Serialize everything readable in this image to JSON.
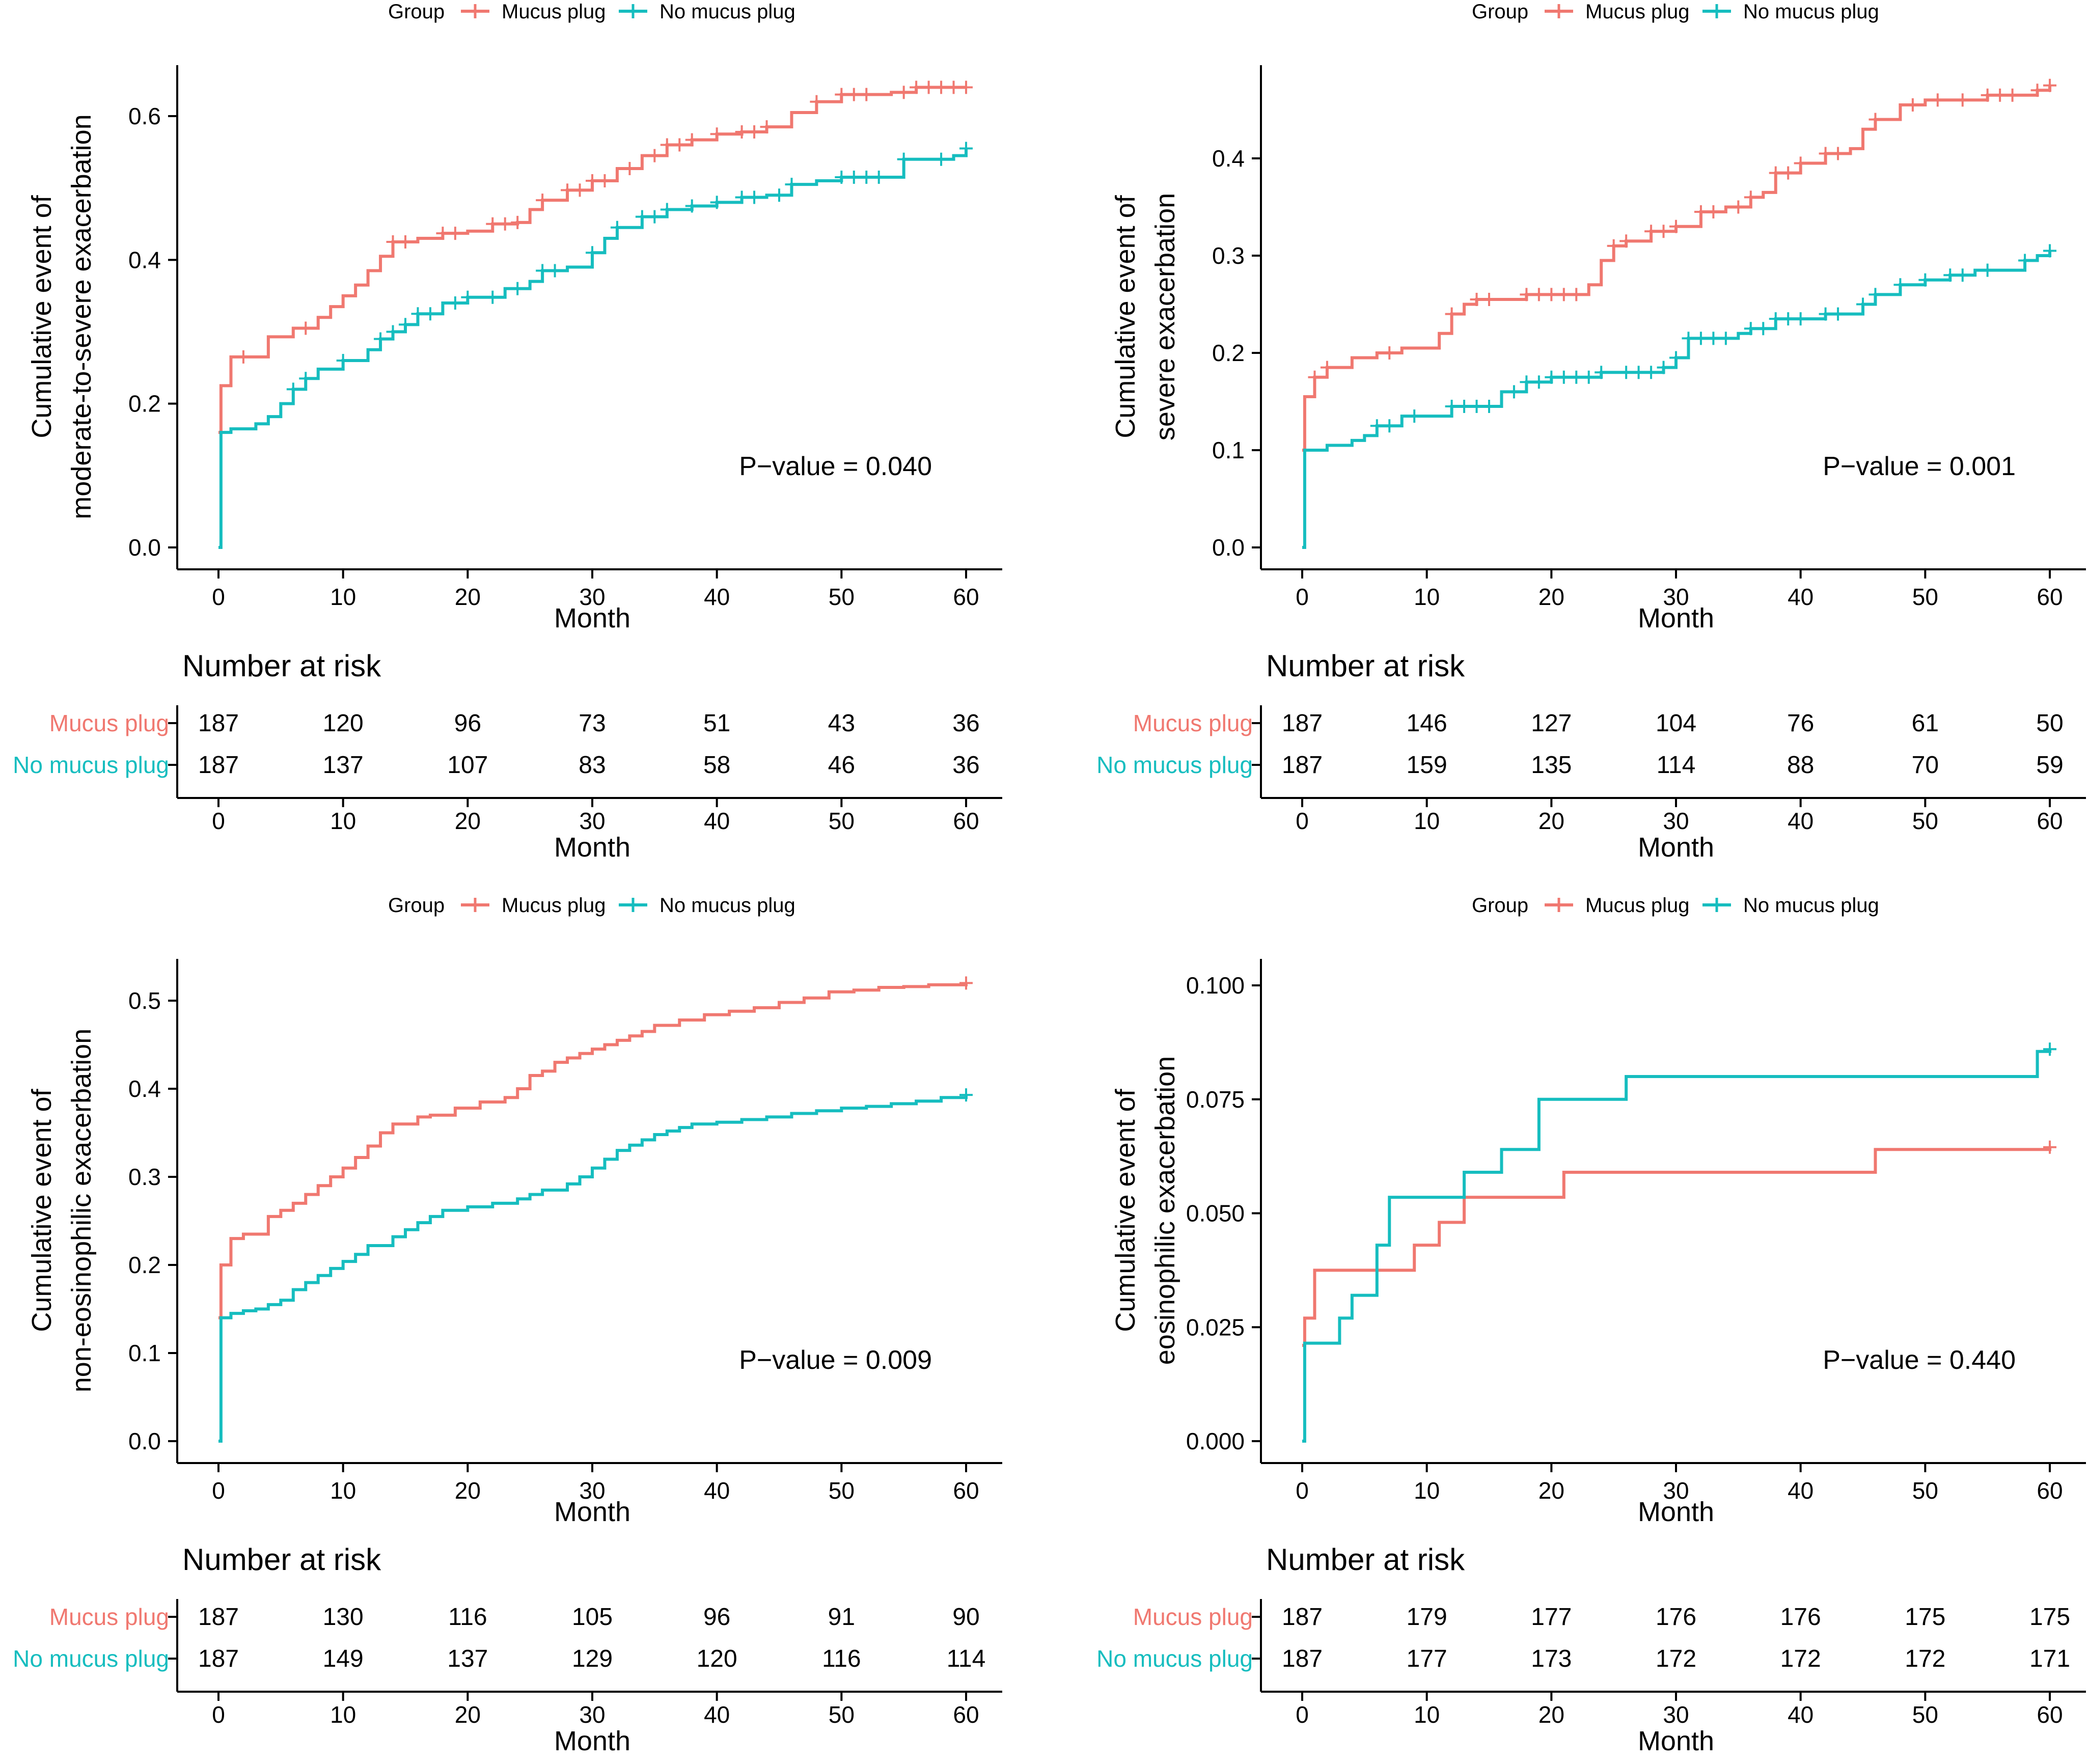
{
  "colors": {
    "mucus_plug": "#F07870",
    "no_mucus_plug": "#16BDBF",
    "axis": "#000000"
  },
  "chart_data": [
    {
      "type": "line",
      "step": true,
      "legend_title": "Group",
      "legend_position": "top",
      "xlabel": "Month",
      "ylabel_line1": "Cumulative event of",
      "ylabel_line2": "moderate-to-severe exacerbation",
      "xlim": [
        0,
        60
      ],
      "ylim": [
        0,
        0.63
      ],
      "xticks": [
        0,
        10,
        20,
        30,
        40,
        50,
        60
      ],
      "yticks": [
        0.0,
        0.2,
        0.4,
        0.6
      ],
      "ytick_labels": [
        "0.0",
        "0.2",
        "0.4",
        "0.6"
      ],
      "annotation": "P−value = 0.040",
      "series": [
        {
          "name": "Mucus plug",
          "color": "#F07870",
          "x": [
            0,
            0.2,
            1,
            4,
            6,
            8,
            9,
            10,
            11,
            12,
            13,
            14,
            16,
            18,
            20,
            22,
            24,
            25,
            26,
            28,
            30,
            32,
            34,
            36,
            38,
            40,
            42,
            44,
            46,
            48,
            50,
            52,
            54,
            56,
            58,
            60
          ],
          "y": [
            0.16,
            0.225,
            0.265,
            0.293,
            0.305,
            0.32,
            0.335,
            0.35,
            0.365,
            0.385,
            0.405,
            0.425,
            0.43,
            0.437,
            0.44,
            0.45,
            0.452,
            0.47,
            0.483,
            0.497,
            0.51,
            0.527,
            0.545,
            0.56,
            0.567,
            0.575,
            0.578,
            0.585,
            0.605,
            0.62,
            0.63,
            0.63,
            0.633,
            0.64,
            0.64,
            0.64
          ],
          "censor_x": [
            2,
            7,
            14,
            15,
            18,
            19,
            22,
            23,
            24,
            26,
            28,
            29,
            30,
            31,
            33,
            35,
            36,
            37,
            38,
            40,
            42,
            43,
            44,
            48,
            50,
            51,
            52,
            55,
            56,
            57,
            58,
            59,
            60
          ]
        },
        {
          "name": "No mucus plug",
          "color": "#16BDBF",
          "x": [
            0,
            0.2,
            1,
            3,
            4,
            5,
            6,
            7,
            8,
            10,
            12,
            13,
            14,
            15,
            16,
            18,
            20,
            23,
            25,
            26,
            28,
            30,
            31,
            32,
            34,
            36,
            38,
            40,
            42,
            44,
            46,
            48,
            50,
            52,
            54,
            55,
            57,
            59,
            60
          ],
          "y": [
            0.0,
            0.16,
            0.165,
            0.172,
            0.182,
            0.2,
            0.22,
            0.235,
            0.248,
            0.26,
            0.275,
            0.29,
            0.3,
            0.31,
            0.325,
            0.34,
            0.348,
            0.36,
            0.37,
            0.385,
            0.39,
            0.41,
            0.43,
            0.445,
            0.46,
            0.47,
            0.475,
            0.48,
            0.487,
            0.49,
            0.505,
            0.51,
            0.515,
            0.515,
            0.515,
            0.54,
            0.54,
            0.545,
            0.555
          ],
          "censor_x": [
            6,
            7,
            10,
            13,
            14,
            15,
            16,
            17,
            19,
            20,
            22,
            24,
            26,
            27,
            30,
            32,
            34,
            35,
            36,
            38,
            40,
            42,
            43,
            45,
            46,
            50,
            51,
            52,
            53,
            55,
            58,
            60
          ]
        }
      ],
      "risk_table": {
        "title": "Number at risk",
        "xlabel": "Month",
        "xticks": [
          0,
          10,
          20,
          30,
          40,
          50,
          60
        ],
        "rows": [
          {
            "name": "Mucus plug",
            "color": "#F07870",
            "values": [
              "187",
              "120",
              "96",
              "73",
              "51",
              "43",
              "36"
            ]
          },
          {
            "name": "No mucus plug",
            "color": "#16BDBF",
            "values": [
              "187",
              "137",
              "107",
              "83",
              "58",
              "46",
              "36"
            ]
          }
        ]
      }
    },
    {
      "type": "line",
      "step": true,
      "legend_title": "Group",
      "legend_position": "top",
      "xlabel": "Month",
      "ylabel_line1": "Cumulative event of",
      "ylabel_line2": "severe exacerbation",
      "xlim": [
        0,
        60
      ],
      "ylim": [
        0,
        0.48
      ],
      "xticks": [
        0,
        10,
        20,
        30,
        40,
        50,
        60
      ],
      "yticks": [
        0.0,
        0.1,
        0.2,
        0.3,
        0.4
      ],
      "ytick_labels": [
        "0.0",
        "0.1",
        "0.2",
        "0.3",
        "0.4"
      ],
      "annotation": "P−value = 0.001",
      "series": [
        {
          "name": "Mucus plug",
          "color": "#F07870",
          "x": [
            0,
            0.2,
            1,
            2,
            4,
            6,
            8,
            10,
            11,
            12,
            13,
            14,
            16,
            18,
            20,
            22,
            23,
            24,
            25,
            26,
            28,
            30,
            32,
            34,
            36,
            37,
            38,
            40,
            42,
            44,
            45,
            46,
            48,
            50,
            55,
            58,
            59,
            60
          ],
          "y": [
            0.1,
            0.155,
            0.175,
            0.185,
            0.195,
            0.2,
            0.205,
            0.205,
            0.22,
            0.24,
            0.25,
            0.255,
            0.255,
            0.26,
            0.26,
            0.26,
            0.27,
            0.295,
            0.31,
            0.315,
            0.325,
            0.33,
            0.345,
            0.35,
            0.36,
            0.365,
            0.385,
            0.395,
            0.405,
            0.41,
            0.43,
            0.44,
            0.455,
            0.46,
            0.465,
            0.465,
            0.47,
            0.475
          ],
          "censor_x": [
            1,
            2,
            7,
            12,
            14,
            15,
            18,
            19,
            20,
            21,
            22,
            25,
            26,
            28,
            29,
            30,
            32,
            33,
            35,
            36,
            38,
            39,
            40,
            42,
            43,
            46,
            49,
            51,
            53,
            55,
            56,
            57,
            59,
            60
          ]
        },
        {
          "name": "No mucus plug",
          "color": "#16BDBF",
          "x": [
            0,
            0.2,
            2,
            4,
            5,
            6,
            8,
            12,
            16,
            18,
            20,
            24,
            26,
            29,
            30,
            31,
            35,
            36,
            38,
            42,
            45,
            46,
            48,
            50,
            52,
            54,
            58,
            59,
            60
          ],
          "y": [
            0.0,
            0.1,
            0.105,
            0.11,
            0.115,
            0.125,
            0.135,
            0.145,
            0.16,
            0.17,
            0.175,
            0.18,
            0.18,
            0.185,
            0.195,
            0.215,
            0.22,
            0.225,
            0.235,
            0.24,
            0.25,
            0.26,
            0.27,
            0.275,
            0.28,
            0.285,
            0.295,
            0.3,
            0.305
          ],
          "censor_x": [
            6,
            7,
            9,
            12,
            13,
            14,
            15,
            17,
            18,
            19,
            20,
            21,
            22,
            23,
            24,
            26,
            27,
            28,
            29,
            30,
            31,
            32,
            33,
            34,
            36,
            37,
            38,
            39,
            40,
            42,
            43,
            45,
            46,
            48,
            50,
            52,
            53,
            55,
            58,
            60
          ]
        }
      ],
      "risk_table": {
        "title": "Number at risk",
        "xlabel": "Month",
        "xticks": [
          0,
          10,
          20,
          30,
          40,
          50,
          60
        ],
        "rows": [
          {
            "name": "Mucus plug",
            "color": "#F07870",
            "values": [
              "187",
              "146",
              "127",
              "104",
              "76",
              "61",
              "50"
            ]
          },
          {
            "name": "No mucus plug",
            "color": "#16BDBF",
            "values": [
              "187",
              "159",
              "135",
              "114",
              "88",
              "70",
              "59"
            ]
          }
        ]
      }
    },
    {
      "type": "line",
      "step": true,
      "legend_title": "Group",
      "legend_position": "top",
      "xlabel": "Month",
      "ylabel_line1": "Cumulative event of",
      "ylabel_line2": "non-eosinophilic exacerbation",
      "xlim": [
        0,
        60
      ],
      "ylim": [
        0,
        0.52
      ],
      "xticks": [
        0,
        10,
        20,
        30,
        40,
        50,
        60
      ],
      "yticks": [
        0.0,
        0.1,
        0.2,
        0.3,
        0.4,
        0.5
      ],
      "ytick_labels": [
        "0.0",
        "0.1",
        "0.2",
        "0.3",
        "0.4",
        "0.5"
      ],
      "annotation": "P−value = 0.009",
      "series": [
        {
          "name": "Mucus plug",
          "color": "#F07870",
          "x": [
            0,
            0.2,
            1,
            2,
            4,
            5,
            6,
            7,
            8,
            9,
            10,
            11,
            12,
            13,
            14,
            16,
            17,
            19,
            21,
            23,
            24,
            25,
            26,
            27,
            28,
            29,
            30,
            31,
            32,
            33,
            34,
            35,
            37,
            39,
            41,
            43,
            45,
            47,
            49,
            51,
            53,
            55,
            57,
            60
          ],
          "y": [
            0.14,
            0.2,
            0.23,
            0.235,
            0.255,
            0.262,
            0.27,
            0.28,
            0.29,
            0.3,
            0.31,
            0.322,
            0.335,
            0.35,
            0.36,
            0.368,
            0.37,
            0.378,
            0.385,
            0.39,
            0.4,
            0.415,
            0.42,
            0.43,
            0.435,
            0.44,
            0.445,
            0.45,
            0.455,
            0.46,
            0.465,
            0.472,
            0.478,
            0.484,
            0.488,
            0.492,
            0.498,
            0.503,
            0.51,
            0.512,
            0.515,
            0.516,
            0.518,
            0.52
          ],
          "censor_x": [
            60
          ]
        },
        {
          "name": "No mucus plug",
          "color": "#16BDBF",
          "x": [
            0,
            0.2,
            1,
            2,
            3,
            4,
            5,
            6,
            7,
            8,
            9,
            10,
            11,
            12,
            14,
            15,
            16,
            17,
            18,
            20,
            22,
            24,
            25,
            26,
            28,
            29,
            30,
            31,
            32,
            33,
            34,
            35,
            36,
            37,
            38,
            40,
            42,
            44,
            46,
            48,
            50,
            52,
            54,
            56,
            58,
            60
          ],
          "y": [
            0.0,
            0.14,
            0.145,
            0.148,
            0.15,
            0.155,
            0.16,
            0.172,
            0.18,
            0.188,
            0.196,
            0.204,
            0.212,
            0.222,
            0.232,
            0.24,
            0.248,
            0.255,
            0.262,
            0.266,
            0.27,
            0.275,
            0.28,
            0.285,
            0.292,
            0.3,
            0.31,
            0.32,
            0.33,
            0.336,
            0.342,
            0.348,
            0.352,
            0.356,
            0.36,
            0.362,
            0.365,
            0.368,
            0.372,
            0.375,
            0.378,
            0.38,
            0.383,
            0.386,
            0.39,
            0.393
          ],
          "censor_x": [
            60
          ]
        }
      ],
      "risk_table": {
        "title": "Number at risk",
        "xlabel": "Month",
        "xticks": [
          0,
          10,
          20,
          30,
          40,
          50,
          60
        ],
        "rows": [
          {
            "name": "Mucus plug",
            "color": "#F07870",
            "values": [
              "187",
              "130",
              "116",
              "105",
              "96",
              "91",
              "90"
            ]
          },
          {
            "name": "No mucus plug",
            "color": "#16BDBF",
            "values": [
              "187",
              "149",
              "137",
              "129",
              "120",
              "116",
              "114"
            ]
          }
        ]
      }
    },
    {
      "type": "line",
      "step": true,
      "legend_title": "Group",
      "legend_position": "top",
      "xlabel": "Month",
      "ylabel_line1": "Cumulative event of",
      "ylabel_line2": "eosinophilic exacerbation",
      "xlim": [
        0,
        60
      ],
      "ylim": [
        0,
        0.1
      ],
      "xticks": [
        0,
        10,
        20,
        30,
        40,
        50,
        60
      ],
      "yticks": [
        0.0,
        0.025,
        0.05,
        0.075,
        0.1
      ],
      "ytick_labels": [
        "0.000",
        "0.025",
        "0.050",
        "0.075",
        "0.100"
      ],
      "annotation": "P−value = 0.440",
      "series": [
        {
          "name": "Mucus plug",
          "color": "#F07870",
          "x": [
            0,
            0.2,
            1,
            9,
            11,
            13,
            21,
            46,
            60
          ],
          "y": [
            0.021,
            0.027,
            0.0375,
            0.043,
            0.048,
            0.0535,
            0.059,
            0.064,
            0.0645
          ],
          "censor_x": [
            60
          ]
        },
        {
          "name": "No mucus plug",
          "color": "#16BDBF",
          "x": [
            0,
            0.2,
            3,
            4,
            6,
            7,
            13,
            16,
            19,
            26,
            59,
            60
          ],
          "y": [
            0.0,
            0.0215,
            0.027,
            0.032,
            0.043,
            0.0535,
            0.059,
            0.064,
            0.075,
            0.08,
            0.0855,
            0.086
          ],
          "censor_x": [
            60
          ]
        }
      ],
      "risk_table": {
        "title": "Number at risk",
        "xlabel": "Month",
        "xticks": [
          0,
          10,
          20,
          30,
          40,
          50,
          60
        ],
        "rows": [
          {
            "name": "Mucus plug",
            "color": "#F07870",
            "values": [
              "187",
              "179",
              "177",
              "176",
              "176",
              "175",
              "175"
            ]
          },
          {
            "name": "No mucus plug",
            "color": "#16BDBF",
            "values": [
              "187",
              "177",
              "173",
              "172",
              "172",
              "172",
              "171"
            ]
          }
        ]
      }
    }
  ]
}
